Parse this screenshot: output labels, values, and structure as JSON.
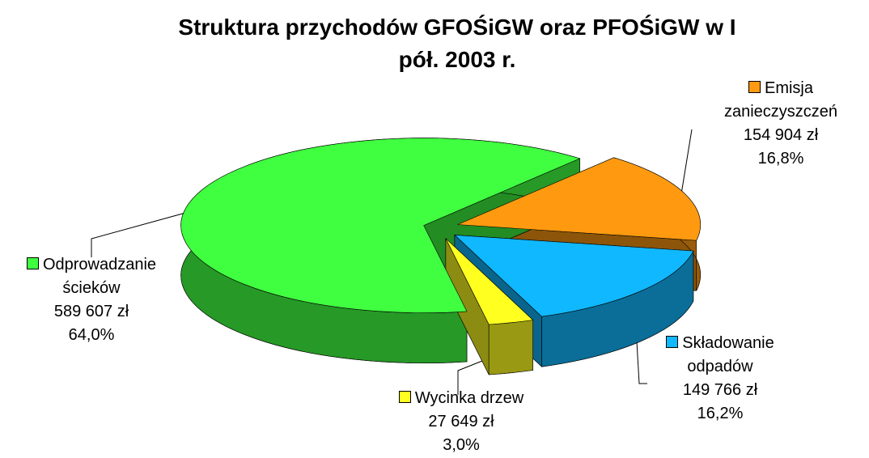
{
  "chart_data": {
    "type": "pie3d",
    "title": "Struktura przychodów GFOŚiGW oraz PFOŚiGW w I pół. 2003 r.",
    "categories": [
      "Emisja zanieczyszczeń",
      "Składowanie odpadów",
      "Wycinka drzew",
      "Odprowadzanie ścieków"
    ],
    "values": [
      154904,
      149766,
      27649,
      589607
    ],
    "value_labels": [
      "154 904 zł",
      "149 766 zł",
      "27 649 zł",
      "589 607 zł"
    ],
    "percentages": [
      16.8,
      16.2,
      3.0,
      64.0
    ],
    "percentage_labels": [
      "16,8%",
      "16,2%",
      "3,0%",
      "64,0%"
    ],
    "colors": [
      "#ff9a10",
      "#10b8ff",
      "#ffff20",
      "#40ff40"
    ]
  }
}
